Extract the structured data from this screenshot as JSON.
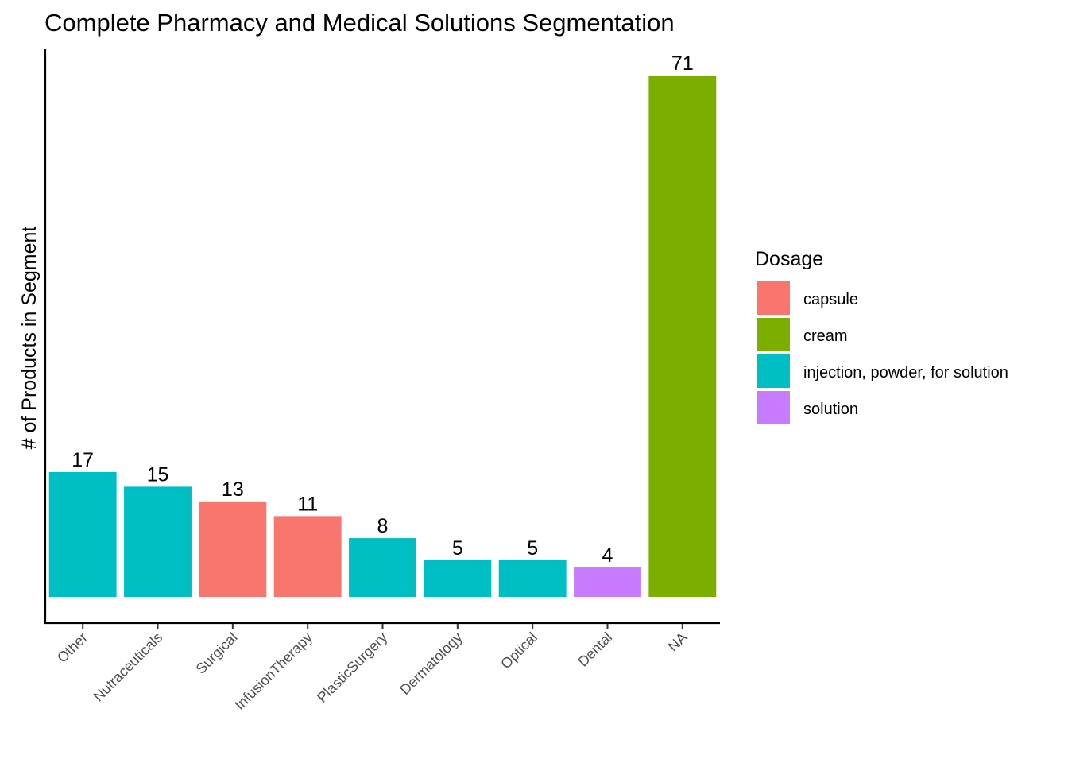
{
  "chart_data": {
    "type": "bar",
    "title": "Complete Pharmacy and Medical Solutions Segmentation",
    "xlabel": "",
    "ylabel": "# of Products in Segment",
    "ylim": [
      0,
      75
    ],
    "grid": false,
    "categories": [
      "Other",
      "Nutraceuticals",
      "Surgical",
      "InfusionTherapy",
      "PlasticSurgery",
      "Dermatology",
      "Optical",
      "Dental",
      "NA"
    ],
    "values": [
      17,
      15,
      13,
      11,
      8,
      5,
      5,
      4,
      71
    ],
    "bar_dosage": [
      "injection, powder, for solution",
      "injection, powder, for solution",
      "capsule",
      "capsule",
      "injection, powder, for solution",
      "injection, powder, for solution",
      "injection, powder, for solution",
      "solution",
      "cream"
    ],
    "legend": {
      "title": "Dosage",
      "placement": "right",
      "entries": [
        {
          "label": "capsule",
          "color": "#F8766D"
        },
        {
          "label": "cream",
          "color": "#7CAE00"
        },
        {
          "label": "injection, powder, for solution",
          "color": "#00BFC4"
        },
        {
          "label": "solution",
          "color": "#C77CFF"
        }
      ]
    }
  }
}
